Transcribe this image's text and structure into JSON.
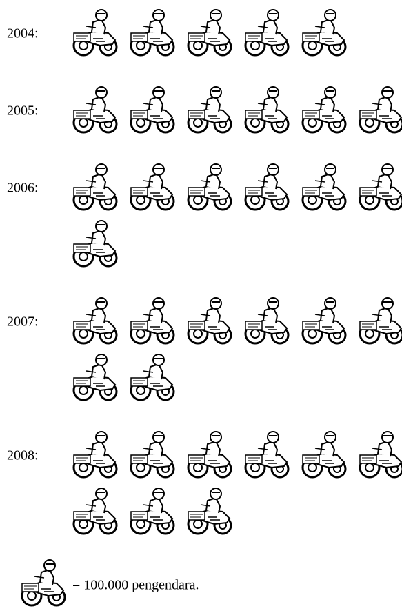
{
  "chart_data": {
    "type": "pictograph",
    "categories": [
      "2004:",
      "2005:",
      "2006:",
      "2007:",
      "2008:"
    ],
    "values": [
      5,
      6,
      7,
      8,
      9
    ],
    "legend_label": "= 100.000 pengendara."
  }
}
